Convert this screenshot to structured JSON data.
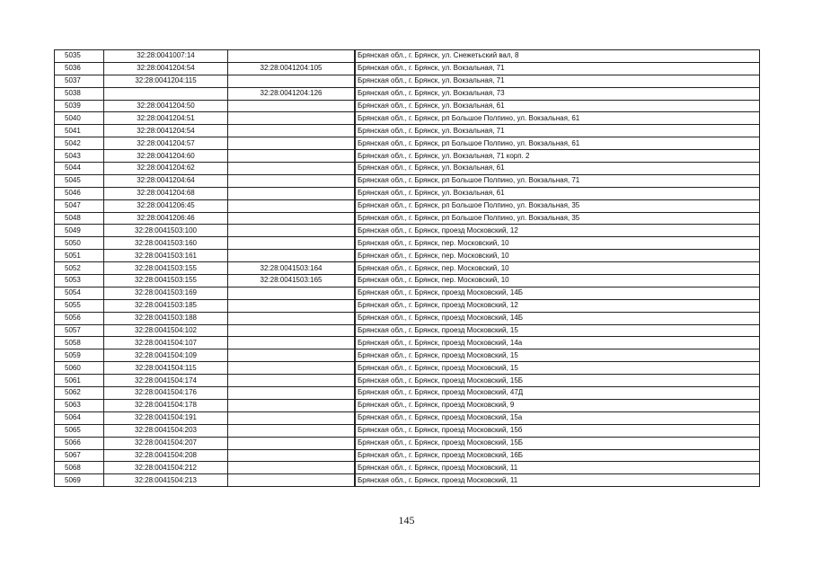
{
  "table": {
    "rows": [
      [
        "5035",
        "32:28:0041007:14",
        "",
        "Брянская обл., г. Брянск, ул. Снежетьский вал, 8"
      ],
      [
        "5036",
        "32:28:0041204:54",
        "32:28:0041204:105",
        "Брянская обл., г. Брянск, ул. Вокзальная, 71"
      ],
      [
        "5037",
        "32:28:0041204:115",
        "",
        "Брянская обл., г. Брянск, ул. Вокзальная, 71"
      ],
      [
        "5038",
        "",
        "32:28:0041204:126",
        "Брянская обл., г. Брянск, ул. Вокзальная, 73"
      ],
      [
        "5039",
        "32:28:0041204:50",
        "",
        "Брянская обл., г. Брянск, ул. Вокзальная, 61"
      ],
      [
        "5040",
        "32:28:0041204:51",
        "",
        "Брянская обл., г. Брянск, рп Большое Полпино, ул. Вокзальная, 61"
      ],
      [
        "5041",
        "32:28:0041204:54",
        "",
        "Брянская обл., г. Брянск, ул. Вокзальная, 71"
      ],
      [
        "5042",
        "32:28:0041204:57",
        "",
        "Брянская обл., г. Брянск, рп Большое Полпино, ул. Вокзальная, 61"
      ],
      [
        "5043",
        "32:28:0041204:60",
        "",
        "Брянская обл., г. Брянск, ул. Вокзальная, 71 корп. 2"
      ],
      [
        "5044",
        "32:28:0041204:62",
        "",
        "Брянская обл., г. Брянск, ул. Вокзальная, 61"
      ],
      [
        "5045",
        "32:28:0041204:64",
        "",
        "Брянская обл., г. Брянск, рп Большое Полпино, ул. Вокзальная, 71"
      ],
      [
        "5046",
        "32:28:0041204:68",
        "",
        "Брянская обл., г. Брянск, ул. Вокзальная, 61"
      ],
      [
        "5047",
        "32:28:0041206:45",
        "",
        "Брянская обл., г. Брянск, рп Большое Полпино, ул. Вокзальная, 35"
      ],
      [
        "5048",
        "32:28:0041206:46",
        "",
        "Брянская обл., г. Брянск, рп Большое Полпино, ул. Вокзальная, 35"
      ],
      [
        "5049",
        "32:28:0041503:100",
        "",
        "Брянская обл., г. Брянск, проезд Московский, 12"
      ],
      [
        "5050",
        "32:28:0041503:160",
        "",
        "Брянская обл., г. Брянск, пер. Московский, 10"
      ],
      [
        "5051",
        "32:28:0041503:161",
        "",
        "Брянская обл., г. Брянск, пер. Московский, 10"
      ],
      [
        "5052",
        "32:28:0041503:155",
        "32:28:0041503:164",
        "Брянская обл., г. Брянск, пер. Московский, 10"
      ],
      [
        "5053",
        "32:28:0041503:155",
        "32:28:0041503:165",
        "Брянская обл., г. Брянск, пер. Московский, 10"
      ],
      [
        "5054",
        "32:28:0041503:169",
        "",
        "Брянская обл., г. Брянск, проезд Московский, 14Б"
      ],
      [
        "5055",
        "32:28:0041503:185",
        "",
        "Брянская обл., г. Брянск, проезд Московский, 12"
      ],
      [
        "5056",
        "32:28:0041503:188",
        "",
        "Брянская обл., г. Брянск, проезд Московский, 14Б"
      ],
      [
        "5057",
        "32:28:0041504:102",
        "",
        "Брянская обл., г. Брянск, проезд Московский, 15"
      ],
      [
        "5058",
        "32:28:0041504:107",
        "",
        "Брянская обл., г. Брянск, проезд Московский, 14а"
      ],
      [
        "5059",
        "32:28:0041504:109",
        "",
        "Брянская обл., г. Брянск, проезд Московский, 15"
      ],
      [
        "5060",
        "32:28:0041504:115",
        "",
        "Брянская обл., г. Брянск, проезд Московский, 15"
      ],
      [
        "5061",
        "32:28:0041504:174",
        "",
        "Брянская обл., г. Брянск, проезд Московский, 15Б"
      ],
      [
        "5062",
        "32:28:0041504:176",
        "",
        "Брянская обл., г. Брянск, проезд Московский, 47Д"
      ],
      [
        "5063",
        "32:28:0041504:178",
        "",
        "Брянская обл., г. Брянск, проезд Московский, 9"
      ],
      [
        "5064",
        "32:28:0041504:191",
        "",
        "Брянская обл., г. Брянск, проезд Московский, 15а"
      ],
      [
        "5065",
        "32:28:0041504:203",
        "",
        "Брянская обл., г. Брянск, проезд Московский, 15б"
      ],
      [
        "5066",
        "32:28:0041504:207",
        "",
        "Брянская обл., г. Брянск, проезд Московский, 15Б"
      ],
      [
        "5067",
        "32:28:0041504:208",
        "",
        "Брянская обл., г. Брянск, проезд Московский, 16Б"
      ],
      [
        "5068",
        "32:28:0041504:212",
        "",
        "Брянская обл., г. Брянск, проезд Московский, 11"
      ],
      [
        "5069",
        "32:28:0041504:213",
        "",
        "Брянская обл., г. Брянск, проезд Московский, 11"
      ]
    ]
  },
  "page_number": "145"
}
